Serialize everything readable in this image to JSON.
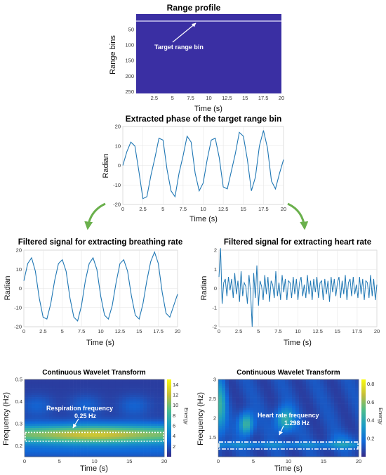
{
  "chart_data": [
    {
      "id": "range",
      "type": "heatmap",
      "title": "Range profile",
      "xlabel": "Time (s)",
      "ylabel": "Range bins",
      "xlim": [
        0,
        20
      ],
      "ylim": [
        0,
        256
      ],
      "y_inverted": true,
      "xticks": [
        2.5,
        5,
        7.5,
        10,
        12.5,
        15,
        17.5,
        20
      ],
      "xtick_labels": [
        "2.5",
        "5",
        "7.5",
        "10",
        "12.5",
        "15",
        "17.5",
        "20"
      ],
      "yticks": [
        50,
        100,
        150,
        200,
        250
      ],
      "ytick_labels": [
        "50",
        "100",
        "150",
        "200",
        "250"
      ],
      "target_range_bin": 30,
      "annotation": "Target range bin",
      "colors": {
        "background": "#3a2fa3",
        "target_line": "#c9c6f0",
        "arrow": "#ffffff"
      }
    },
    {
      "id": "phase",
      "type": "line",
      "title": "Extracted phase of the target range bin",
      "xlabel": "Time (s)",
      "ylabel": "Radian",
      "xlim": [
        0,
        20
      ],
      "ylim": [
        -20,
        20
      ],
      "xticks": [
        0,
        2.5,
        5,
        7.5,
        10,
        12.5,
        15,
        17.5,
        20
      ],
      "xtick_labels": [
        "0",
        "2.5",
        "5",
        "7.5",
        "10",
        "12.5",
        "15",
        "17.5",
        "20"
      ],
      "yticks": [
        -20,
        -10,
        0,
        10,
        20
      ],
      "ytick_labels": [
        "-20",
        "-10",
        "0",
        "10",
        "20"
      ],
      "grid": true,
      "series": [
        {
          "color": "#1f77b4",
          "x": [
            0,
            0.5,
            1,
            1.5,
            2,
            2.5,
            3,
            3.5,
            4,
            4.5,
            5,
            5.5,
            6,
            6.5,
            7,
            7.5,
            8,
            8.5,
            9,
            9.5,
            10,
            10.5,
            11,
            11.5,
            12,
            12.5,
            13,
            13.5,
            14,
            14.5,
            15,
            15.5,
            16,
            16.5,
            17,
            17.5,
            18,
            18.5,
            19,
            19.5,
            20
          ],
          "y": [
            0,
            7,
            12,
            10,
            -3,
            -17,
            -16,
            -5,
            4,
            14,
            13,
            -2,
            -13,
            -16,
            -4,
            5,
            15,
            12,
            -4,
            -13,
            -9,
            3,
            13,
            14,
            4,
            -11,
            -12,
            -3,
            6,
            17,
            15,
            3,
            -13,
            -6,
            10,
            18,
            9,
            -8,
            -12,
            -4,
            3
          ]
        }
      ]
    },
    {
      "id": "breath",
      "type": "line",
      "title": "Filtered signal for extracting breathing rate",
      "xlabel": "Time (s)",
      "ylabel": "Radian",
      "xlim": [
        0,
        20
      ],
      "ylim": [
        -20,
        20
      ],
      "xticks": [
        0,
        2.5,
        5,
        7.5,
        10,
        12.5,
        15,
        17.5,
        20
      ],
      "xtick_labels": [
        "0",
        "2.5",
        "5",
        "7.5",
        "10",
        "12.5",
        "15",
        "17.5",
        "20"
      ],
      "yticks": [
        -20,
        -10,
        0,
        10,
        20
      ],
      "ytick_labels": [
        "-20",
        "-10",
        "0",
        "10",
        "20"
      ],
      "grid": true,
      "series": [
        {
          "color": "#1f77b4",
          "x": [
            0,
            0.5,
            1,
            1.5,
            2,
            2.5,
            3,
            3.5,
            4,
            4.5,
            5,
            5.5,
            6,
            6.5,
            7,
            7.5,
            8,
            8.5,
            9,
            9.5,
            10,
            10.5,
            11,
            11.5,
            12,
            12.5,
            13,
            13.5,
            14,
            14.5,
            15,
            15.5,
            16,
            16.5,
            17,
            17.5,
            18,
            18.5,
            19,
            19.5,
            20
          ],
          "y": [
            4,
            13,
            16,
            9,
            -5,
            -15,
            -16,
            -8,
            4,
            13,
            15,
            9,
            -5,
            -15,
            -17,
            -9,
            4,
            13,
            16,
            10,
            -4,
            -14,
            -16,
            -9,
            3,
            13,
            15,
            9,
            -4,
            -14,
            -16,
            -8,
            4,
            14,
            19,
            13,
            -2,
            -13,
            -15,
            -9,
            -3
          ]
        }
      ]
    },
    {
      "id": "heart",
      "type": "line",
      "title": "Filtered signal for extracting heart rate",
      "xlabel": "Time (s)",
      "ylabel": "Radian",
      "xlim": [
        0,
        20
      ],
      "ylim": [
        -2,
        2
      ],
      "xticks": [
        0,
        2.5,
        5,
        7.5,
        10,
        12.5,
        15,
        17.5,
        20
      ],
      "xtick_labels": [
        "0",
        "2.5",
        "5",
        "7.5",
        "10",
        "12.5",
        "15",
        "17.5",
        "20"
      ],
      "yticks": [
        -2,
        -1,
        0,
        1,
        2
      ],
      "ytick_labels": [
        "-2",
        "-1",
        "0",
        "1",
        "2"
      ],
      "grid": true,
      "series": [
        {
          "color": "#1f77b4",
          "x": [
            0,
            0.2,
            0.4,
            0.6,
            0.8,
            1,
            1.2,
            1.4,
            1.6,
            1.8,
            2,
            2.2,
            2.4,
            2.6,
            2.8,
            3,
            3.2,
            3.4,
            3.6,
            3.8,
            4,
            4.2,
            4.4,
            4.6,
            4.8,
            5,
            5.2,
            5.4,
            5.6,
            5.8,
            6,
            6.2,
            6.4,
            6.6,
            6.8,
            7,
            7.2,
            7.4,
            7.6,
            7.8,
            8,
            8.2,
            8.4,
            8.6,
            8.8,
            9,
            9.2,
            9.4,
            9.6,
            9.8,
            10,
            10.2,
            10.4,
            10.6,
            10.8,
            11,
            11.2,
            11.4,
            11.6,
            11.8,
            12,
            12.2,
            12.4,
            12.6,
            12.8,
            13,
            13.2,
            13.4,
            13.6,
            13.8,
            14,
            14.2,
            14.4,
            14.6,
            14.8,
            15,
            15.2,
            15.4,
            15.6,
            15.8,
            16,
            16.2,
            16.4,
            16.6,
            16.8,
            17,
            17.2,
            17.4,
            17.6,
            17.8,
            18,
            18.2,
            18.4,
            18.6,
            18.8,
            19,
            19.2,
            19.4,
            19.6,
            19.8,
            20
          ],
          "y": [
            0.6,
            2.1,
            -0.8,
            0.3,
            0.5,
            -0.4,
            0.6,
            -0.1,
            0.5,
            -0.5,
            0.8,
            -0.3,
            0.4,
            -0.7,
            0.9,
            -0.4,
            0.3,
            0.1,
            -0.8,
            0.7,
            -0.2,
            -2,
            0.8,
            -0.5,
            1.2,
            -0.9,
            0.4,
            0.1,
            -0.6,
            0.7,
            -0.3,
            0.6,
            -0.7,
            0.4,
            0.2,
            -0.5,
            0.9,
            -0.4,
            0.3,
            -0.6,
            0.7,
            -0.2,
            0.5,
            -0.6,
            0.4,
            0.3,
            -0.5,
            0.6,
            -0.3,
            0.5,
            -0.6,
            0.3,
            0.6,
            -0.4,
            0.2,
            -0.5,
            0.7,
            -0.3,
            0.4,
            -0.6,
            0.5,
            -0.2,
            0.6,
            -0.5,
            0.3,
            0.4,
            -0.6,
            0.5,
            -0.3,
            0.4,
            -0.7,
            0.6,
            -0.2,
            0.5,
            -0.4,
            0.3,
            0.6,
            -0.5,
            0.4,
            -0.3,
            0.7,
            -0.6,
            0.3,
            0.5,
            -0.4,
            0.6,
            -0.3,
            0.2,
            -0.5,
            0.6,
            -0.3,
            0.5,
            -0.6,
            0.4,
            0.3,
            -0.5,
            0.7,
            -0.4,
            0.5,
            -0.6,
            0.2
          ]
        }
      ]
    },
    {
      "id": "cwt1",
      "type": "heatmap",
      "title": "Continuous Wavelet Transform",
      "xlabel": "Time (s)",
      "ylabel": "Frequency (Hz)",
      "xlim": [
        0,
        20
      ],
      "ylim": [
        0.15,
        0.5
      ],
      "xticks": [
        0,
        5,
        10,
        15,
        20
      ],
      "xtick_labels": [
        "0",
        "5",
        "10",
        "15",
        "20"
      ],
      "yticks": [
        0.2,
        0.3,
        0.4,
        0.5
      ],
      "ytick_labels": [
        "0.2",
        "0.3",
        "0.4",
        "0.5"
      ],
      "colorbar": {
        "label": "Energy",
        "range": [
          0,
          15
        ],
        "ticks": [
          2,
          4,
          6,
          8,
          10,
          12,
          14
        ],
        "tick_labels": [
          "2",
          "4",
          "6",
          "8",
          "10",
          "12",
          "14"
        ]
      },
      "highlight_band": [
        0.22,
        0.26
      ],
      "annotation": "Respiration frequency",
      "annotation_value": "0.25 Hz",
      "peak_frequency": 0.25
    },
    {
      "id": "cwt2",
      "type": "heatmap",
      "title": "Continuous Wavelet Transform",
      "xlabel": "Time (s)",
      "ylabel": "Frequency (Hz)",
      "xlim": [
        0,
        20
      ],
      "ylim": [
        1,
        3
      ],
      "xticks": [
        0,
        5,
        10,
        15,
        20
      ],
      "xtick_labels": [
        "0",
        "5",
        "10",
        "15",
        "20"
      ],
      "yticks": [
        1.5,
        2,
        2.5,
        3
      ],
      "ytick_labels": [
        "1.5",
        "2",
        "2.5",
        "3"
      ],
      "colorbar": {
        "label": "Energy",
        "range": [
          0,
          0.85
        ],
        "ticks": [
          0.2,
          0.4,
          0.6,
          0.8
        ],
        "tick_labels": [
          "0.2",
          "0.4",
          "0.6",
          "0.8"
        ]
      },
      "highlight_band": [
        1.2,
        1.38
      ],
      "annotation": "Heart rate frequency",
      "annotation_value": "1.298 Hz",
      "peak_frequency": 1.298
    }
  ],
  "arrow_color": "#6ab04c"
}
